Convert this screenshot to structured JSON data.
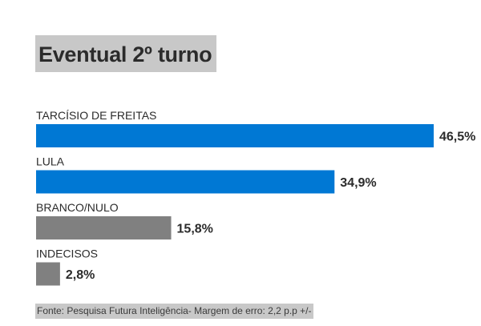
{
  "title": "Eventual 2º turno",
  "source": "Fonte: Pesquisa Futura Inteligência- Margem de erro: 2,2 p.p +/-",
  "colors": {
    "candidate": "#0078d4",
    "other": "#808080",
    "title_bg": "#c8c8c8"
  },
  "chart_data": {
    "type": "bar",
    "orientation": "horizontal",
    "categories": [
      "TARCÍSIO DE FREITAS",
      "LULA",
      "BRANCO/NULO",
      "INDECISOS"
    ],
    "values": [
      46.5,
      34.9,
      15.8,
      2.8
    ],
    "value_labels": [
      "46,5%",
      "34,9%",
      "15,8%",
      "2,8%"
    ],
    "bar_colors": [
      "#0078d4",
      "#0078d4",
      "#808080",
      "#808080"
    ],
    "title": "Eventual 2º turno",
    "xlabel": "",
    "ylabel": "",
    "xlim": [
      0,
      46.5
    ],
    "grid": false
  }
}
